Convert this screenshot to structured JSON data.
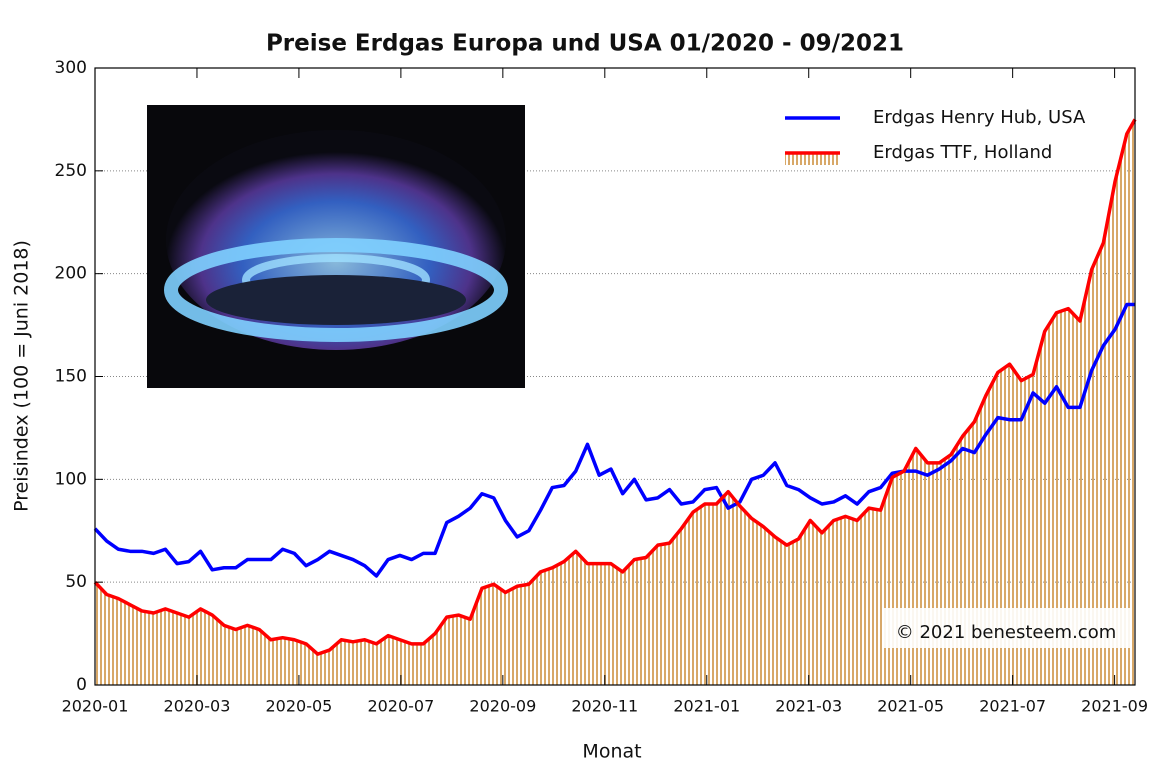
{
  "chart_data": {
    "type": "line",
    "title": "Preise Erdgas Europa und USA  01/2020 - 09/2021",
    "x_label": "Monat",
    "y_label": "Preisindex (100 = Juni 2018)",
    "annotation": "© 2021 benesteem.com",
    "xlim": [
      0,
      20.4
    ],
    "xticks": [
      {
        "value": 0,
        "label": "2020-01"
      },
      {
        "value": 2,
        "label": "2020-03"
      },
      {
        "value": 4,
        "label": "2020-05"
      },
      {
        "value": 6,
        "label": "2020-07"
      },
      {
        "value": 8,
        "label": "2020-09"
      },
      {
        "value": 10,
        "label": "2020-11"
      },
      {
        "value": 12,
        "label": "2021-01"
      },
      {
        "value": 14,
        "label": "2021-03"
      },
      {
        "value": 16,
        "label": "2021-05"
      },
      {
        "value": 18,
        "label": "2021-07"
      },
      {
        "value": 20,
        "label": "2021-09"
      }
    ],
    "ylim": [
      0,
      300
    ],
    "yticks": [
      0,
      50,
      100,
      150,
      200,
      250,
      300
    ],
    "grid": true,
    "x": [
      0,
      0.23,
      0.46,
      0.69,
      0.92,
      1.15,
      1.38,
      1.61,
      1.84,
      2.07,
      2.3,
      2.53,
      2.76,
      2.99,
      3.22,
      3.45,
      3.68,
      3.91,
      4.14,
      4.37,
      4.6,
      4.83,
      5.06,
      5.29,
      5.52,
      5.75,
      5.98,
      6.21,
      6.44,
      6.67,
      6.9,
      7.13,
      7.36,
      7.59,
      7.82,
      8.05,
      8.28,
      8.51,
      8.74,
      8.97,
      9.2,
      9.43,
      9.66,
      9.89,
      10.12,
      10.35,
      10.58,
      10.81,
      11.04,
      11.27,
      11.5,
      11.73,
      11.96,
      12.19,
      12.42,
      12.65,
      12.88,
      13.11,
      13.34,
      13.57,
      13.8,
      14.03,
      14.26,
      14.49,
      14.72,
      14.95,
      15.18,
      15.41,
      15.64,
      15.87,
      16.1,
      16.33,
      16.56,
      16.79,
      17.02,
      17.25,
      17.48,
      17.71,
      17.94,
      18.17,
      18.4,
      18.63,
      18.86,
      19.09,
      19.32,
      19.55,
      19.78,
      20.01,
      20.24,
      20.4
    ],
    "series": [
      {
        "name": "Erdgas Henry Hub, USA",
        "color": "#0000ff",
        "values": [
          76,
          70,
          66,
          65,
          65,
          64,
          66,
          59,
          60,
          65,
          56,
          57,
          57,
          61,
          61,
          61,
          66,
          64,
          58,
          61,
          65,
          63,
          61,
          58,
          53,
          61,
          63,
          61,
          64,
          64,
          79,
          82,
          86,
          93,
          91,
          80,
          72,
          75,
          85,
          96,
          97,
          104,
          117,
          102,
          105,
          93,
          100,
          90,
          91,
          95,
          88,
          89,
          95,
          96,
          86,
          89,
          100,
          102,
          108,
          97,
          95,
          91,
          88,
          89,
          92,
          88,
          94,
          96,
          103,
          104,
          104,
          102,
          105,
          109,
          115,
          113,
          122,
          130,
          129,
          129,
          142,
          137,
          145,
          135,
          135,
          153,
          165,
          173,
          185,
          185
        ]
      },
      {
        "name": "Erdgas TTF, Holland",
        "color": "#ff0000",
        "fill": "#d8a868",
        "values": [
          50,
          44,
          42,
          39,
          36,
          35,
          37,
          35,
          33,
          37,
          34,
          29,
          27,
          29,
          27,
          22,
          23,
          22,
          20,
          15,
          17,
          22,
          21,
          22,
          20,
          24,
          22,
          20,
          20,
          25,
          33,
          34,
          32,
          47,
          49,
          45,
          48,
          49,
          55,
          57,
          60,
          65,
          59,
          59,
          59,
          55,
          61,
          62,
          68,
          69,
          76,
          84,
          88,
          88,
          94,
          87,
          81,
          77,
          72,
          68,
          71,
          80,
          74,
          80,
          82,
          80,
          86,
          85,
          101,
          104,
          115,
          108,
          108,
          112,
          121,
          128,
          141,
          152,
          156,
          148,
          151,
          172,
          181,
          183,
          177,
          202,
          215,
          245,
          268,
          275
        ]
      }
    ]
  }
}
